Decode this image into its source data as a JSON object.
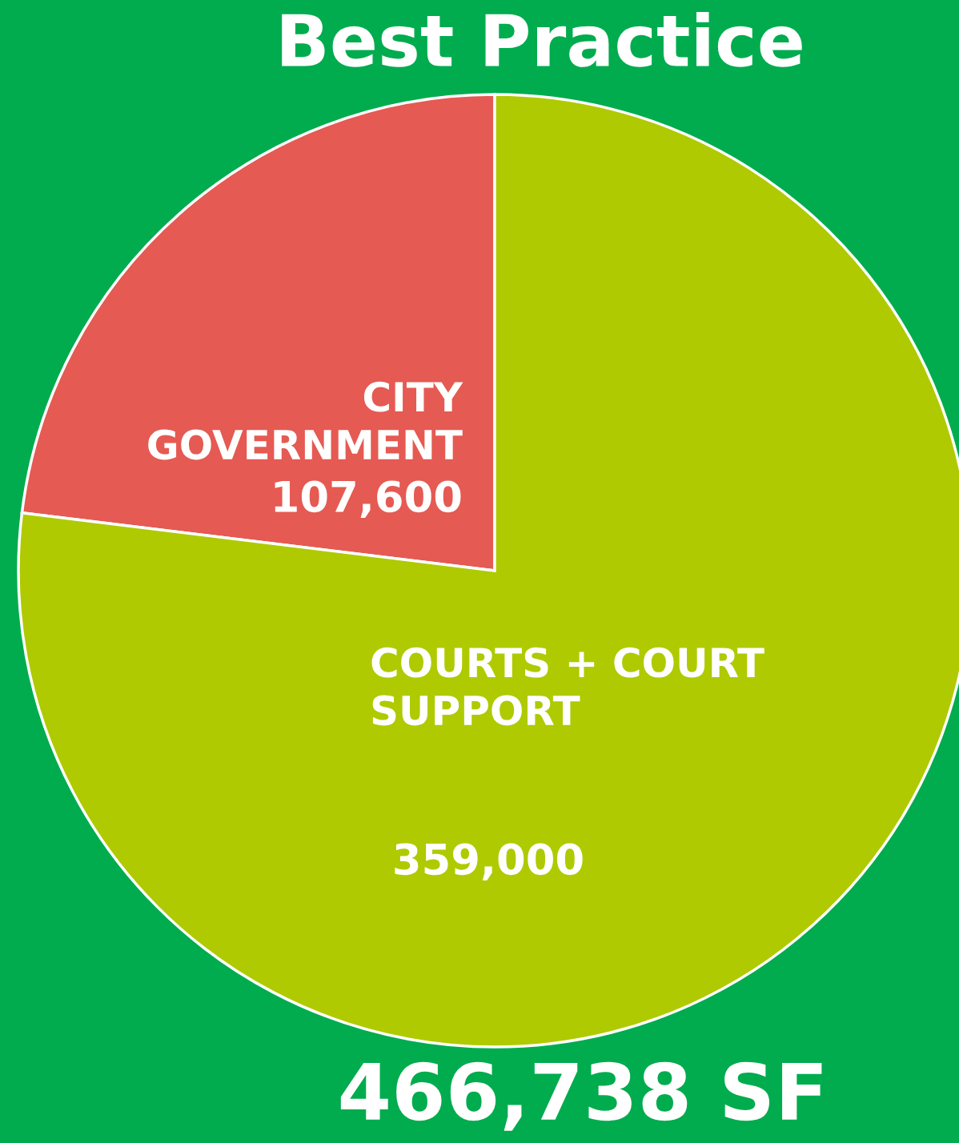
{
  "chart_data": {
    "type": "pie",
    "title": "Best Practice",
    "categories": [
      "CITY\nGOVERNMENT",
      "COURTS + COURT\nSUPPORT"
    ],
    "values": [
      107600,
      359000
    ],
    "value_labels": [
      "107,600",
      "359,000"
    ],
    "colors": [
      "#e55a52",
      "#afca00"
    ],
    "annotations": [
      "466,738 SF"
    ]
  }
}
